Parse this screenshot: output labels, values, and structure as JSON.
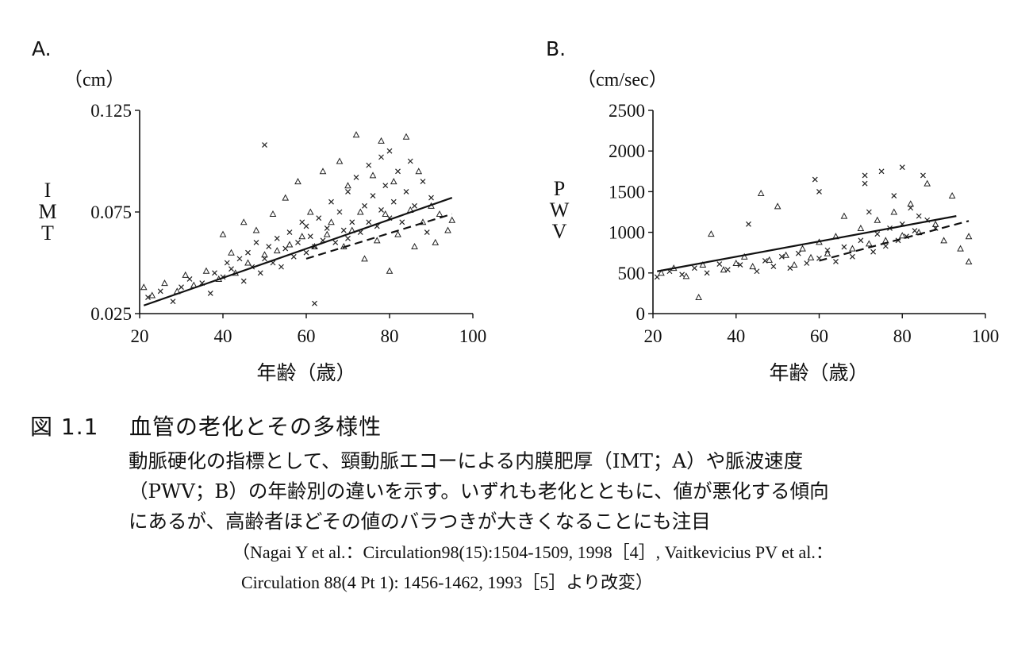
{
  "chart_data": [
    {
      "type": "scatter",
      "panel_label": "A.",
      "unit": "（cm）",
      "ylabel": "IMT",
      "xlabel": "年齢（歳）",
      "xlim": [
        20,
        100
      ],
      "ylim": [
        0.025,
        0.125
      ],
      "xticks": [
        "20",
        "40",
        "60",
        "80",
        "100"
      ],
      "yticks": [
        "0.025",
        "0.075",
        "0.125"
      ],
      "series": [
        {
          "marker": "cross",
          "points": [
            [
              22,
              0.033
            ],
            [
              25,
              0.036
            ],
            [
              28,
              0.031
            ],
            [
              30,
              0.038
            ],
            [
              32,
              0.042
            ],
            [
              35,
              0.04
            ],
            [
              37,
              0.035
            ],
            [
              38,
              0.045
            ],
            [
              40,
              0.043
            ],
            [
              41,
              0.05
            ],
            [
              42,
              0.047
            ],
            [
              44,
              0.052
            ],
            [
              45,
              0.041
            ],
            [
              46,
              0.055
            ],
            [
              47,
              0.048
            ],
            [
              48,
              0.06
            ],
            [
              49,
              0.045
            ],
            [
              50,
              0.108
            ],
            [
              50,
              0.052
            ],
            [
              51,
              0.058
            ],
            [
              52,
              0.05
            ],
            [
              53,
              0.062
            ],
            [
              54,
              0.048
            ],
            [
              55,
              0.057
            ],
            [
              56,
              0.065
            ],
            [
              57,
              0.053
            ],
            [
              58,
              0.06
            ],
            [
              59,
              0.07
            ],
            [
              60,
              0.055
            ],
            [
              60,
              0.068
            ],
            [
              61,
              0.063
            ],
            [
              62,
              0.03
            ],
            [
              62,
              0.058
            ],
            [
              63,
              0.072
            ],
            [
              64,
              0.061
            ],
            [
              65,
              0.067
            ],
            [
              66,
              0.08
            ],
            [
              67,
              0.06
            ],
            [
              68,
              0.075
            ],
            [
              69,
              0.066
            ],
            [
              70,
              0.085
            ],
            [
              70,
              0.062
            ],
            [
              71,
              0.07
            ],
            [
              72,
              0.092
            ],
            [
              73,
              0.065
            ],
            [
              74,
              0.078
            ],
            [
              75,
              0.098
            ],
            [
              75,
              0.07
            ],
            [
              76,
              0.083
            ],
            [
              77,
              0.068
            ],
            [
              78,
              0.102
            ],
            [
              78,
              0.076
            ],
            [
              79,
              0.088
            ],
            [
              80,
              0.072
            ],
            [
              80,
              0.105
            ],
            [
              81,
              0.08
            ],
            [
              82,
              0.095
            ],
            [
              83,
              0.07
            ],
            [
              84,
              0.085
            ],
            [
              85,
              0.1
            ],
            [
              86,
              0.078
            ],
            [
              88,
              0.09
            ],
            [
              89,
              0.065
            ],
            [
              90,
              0.082
            ]
          ]
        },
        {
          "marker": "triangle",
          "points": [
            [
              21,
              0.038
            ],
            [
              23,
              0.034
            ],
            [
              26,
              0.04
            ],
            [
              29,
              0.036
            ],
            [
              31,
              0.044
            ],
            [
              33,
              0.039
            ],
            [
              36,
              0.046
            ],
            [
              39,
              0.042
            ],
            [
              40,
              0.064
            ],
            [
              42,
              0.055
            ],
            [
              43,
              0.045
            ],
            [
              45,
              0.07
            ],
            [
              46,
              0.05
            ],
            [
              48,
              0.066
            ],
            [
              50,
              0.054
            ],
            [
              52,
              0.074
            ],
            [
              53,
              0.056
            ],
            [
              55,
              0.082
            ],
            [
              56,
              0.059
            ],
            [
              58,
              0.09
            ],
            [
              59,
              0.063
            ],
            [
              61,
              0.075
            ],
            [
              62,
              0.058
            ],
            [
              64,
              0.095
            ],
            [
              65,
              0.064
            ],
            [
              66,
              0.07
            ],
            [
              68,
              0.1
            ],
            [
              69,
              0.058
            ],
            [
              70,
              0.088
            ],
            [
              71,
              0.066
            ],
            [
              72,
              0.113
            ],
            [
              73,
              0.075
            ],
            [
              74,
              0.052
            ],
            [
              76,
              0.093
            ],
            [
              77,
              0.061
            ],
            [
              78,
              0.11
            ],
            [
              79,
              0.074
            ],
            [
              80,
              0.046
            ],
            [
              81,
              0.09
            ],
            [
              82,
              0.064
            ],
            [
              84,
              0.112
            ],
            [
              85,
              0.076
            ],
            [
              86,
              0.058
            ],
            [
              87,
              0.095
            ],
            [
              88,
              0.07
            ],
            [
              90,
              0.078
            ],
            [
              91,
              0.06
            ],
            [
              92,
              0.074
            ],
            [
              94,
              0.066
            ],
            [
              95,
              0.071
            ]
          ]
        }
      ],
      "fits": [
        {
          "style": "solid",
          "x": [
            21,
            95
          ],
          "y": [
            0.029,
            0.082
          ]
        },
        {
          "style": "dashed",
          "x": [
            60,
            95
          ],
          "y": [
            0.052,
            0.074
          ]
        }
      ]
    },
    {
      "type": "scatter",
      "panel_label": "B.",
      "unit": "（cm/sec）",
      "ylabel": "PWV",
      "xlabel": "年齢（歳）",
      "xlim": [
        20,
        100
      ],
      "ylim": [
        0,
        2500
      ],
      "xticks": [
        "20",
        "40",
        "60",
        "80",
        "100"
      ],
      "yticks": [
        "0",
        "500",
        "1000",
        "1500",
        "2000",
        "2500"
      ],
      "series": [
        {
          "marker": "cross",
          "points": [
            [
              21,
              450
            ],
            [
              24,
              520
            ],
            [
              27,
              480
            ],
            [
              30,
              560
            ],
            [
              33,
              500
            ],
            [
              36,
              610
            ],
            [
              38,
              540
            ],
            [
              41,
              600
            ],
            [
              43,
              1100
            ],
            [
              45,
              520
            ],
            [
              47,
              650
            ],
            [
              49,
              580
            ],
            [
              51,
              700
            ],
            [
              53,
              560
            ],
            [
              55,
              740
            ],
            [
              57,
              620
            ],
            [
              59,
              1650
            ],
            [
              60,
              1500
            ],
            [
              60,
              680
            ],
            [
              62,
              780
            ],
            [
              64,
              640
            ],
            [
              66,
              820
            ],
            [
              68,
              700
            ],
            [
              70,
              900
            ],
            [
              71,
              1700
            ],
            [
              71,
              1600
            ],
            [
              72,
              1250
            ],
            [
              73,
              760
            ],
            [
              74,
              980
            ],
            [
              75,
              1750
            ],
            [
              76,
              830
            ],
            [
              77,
              1050
            ],
            [
              78,
              1450
            ],
            [
              79,
              900
            ],
            [
              80,
              1800
            ],
            [
              80,
              1100
            ],
            [
              81,
              950
            ],
            [
              82,
              1300
            ],
            [
              83,
              1020
            ],
            [
              84,
              1200
            ],
            [
              85,
              1700
            ],
            [
              86,
              1150
            ],
            [
              88,
              1050
            ]
          ]
        },
        {
          "marker": "triangle",
          "points": [
            [
              22,
              500
            ],
            [
              25,
              560
            ],
            [
              28,
              460
            ],
            [
              31,
              200
            ],
            [
              32,
              600
            ],
            [
              34,
              980
            ],
            [
              37,
              540
            ],
            [
              40,
              620
            ],
            [
              42,
              700
            ],
            [
              44,
              580
            ],
            [
              46,
              1480
            ],
            [
              48,
              660
            ],
            [
              50,
              1320
            ],
            [
              52,
              720
            ],
            [
              54,
              600
            ],
            [
              56,
              800
            ],
            [
              58,
              690
            ],
            [
              60,
              880
            ],
            [
              62,
              740
            ],
            [
              64,
              950
            ],
            [
              66,
              1200
            ],
            [
              68,
              800
            ],
            [
              70,
              1050
            ],
            [
              72,
              860
            ],
            [
              74,
              1150
            ],
            [
              76,
              900
            ],
            [
              78,
              1250
            ],
            [
              80,
              960
            ],
            [
              82,
              1350
            ],
            [
              84,
              1000
            ],
            [
              86,
              1600
            ],
            [
              88,
              1100
            ],
            [
              90,
              900
            ],
            [
              92,
              1450
            ],
            [
              94,
              800
            ],
            [
              96,
              950
            ],
            [
              96,
              640
            ]
          ]
        }
      ],
      "fits": [
        {
          "style": "solid",
          "x": [
            21,
            93
          ],
          "y": [
            520,
            1200
          ]
        },
        {
          "style": "dashed",
          "x": [
            60,
            96
          ],
          "y": [
            650,
            1140
          ]
        }
      ]
    }
  ],
  "caption": {
    "fig_label": "図 1.1",
    "title": "血管の老化とその多様性",
    "lines": [
      "動脈硬化の指標として、頸動脈エコーによる内膜肥厚（IMT；A）や脈波速度",
      "（PWV；B）の年齢別の違いを示す。いずれも老化とともに、値が悪化する傾向",
      "にあるが、高齢者ほどその値のバラつきが大きくなることにも注目"
    ],
    "citation": [
      "（Nagai Y et al.：Circulation98(15):1504-1509, 1998［4］, Vaitkevicius PV et al.：",
      "Circulation 88(4 Pt 1): 1456-1462, 1993［5］より改変）"
    ]
  }
}
